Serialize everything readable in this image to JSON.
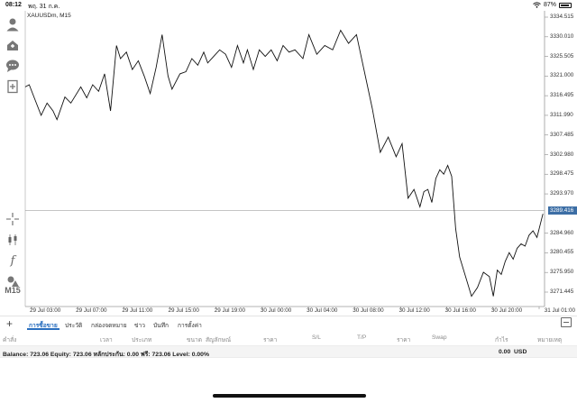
{
  "status_bar": {
    "time": "08:12",
    "date": "พฤ. 31 ก.ค.",
    "battery": "87%",
    "battery_level": 0.87
  },
  "toolbar": {
    "timeframe": "M15",
    "icons": [
      "account-icon",
      "trade-icon",
      "chat-icon",
      "new-order-icon",
      "crosshair-icon",
      "indicator-icon",
      "function-icon",
      "objects-icon"
    ]
  },
  "chart": {
    "symbol_label": "XAUUSDm, M15",
    "current_price": "3289.416",
    "line_color": "#111111",
    "current_price_color": "#3c6ea5"
  },
  "chart_data": {
    "type": "line",
    "title": "",
    "xlabel": "",
    "ylabel": "",
    "ylim": [
      3267.0,
      3336.0
    ],
    "y_ticks": [
      "3334.515",
      "3330.010",
      "3325.505",
      "3321.000",
      "3316.495",
      "3311.990",
      "3307.485",
      "3302.980",
      "3298.475",
      "3293.970",
      "3289.416",
      "3284.960",
      "3280.455",
      "3275.950",
      "3271.445"
    ],
    "x_ticks": [
      "29 Jul 03:00",
      "29 Jul 07:00",
      "29 Jul 11:00",
      "29 Jul 15:00",
      "29 Jul 19:00",
      "30 Jul 00:00",
      "30 Jul 04:00",
      "30 Jul 08:00",
      "30 Jul 12:00",
      "30 Jul 16:00",
      "30 Jul 20:00",
      "31 Jul 01:00"
    ],
    "x_index": [
      0,
      2,
      5,
      8,
      11,
      14,
      16,
      20,
      23,
      28,
      31,
      34,
      37,
      40,
      43,
      46,
      48,
      51,
      54,
      57,
      60,
      63,
      66,
      69,
      72,
      74,
      78,
      81,
      84,
      87,
      90,
      92,
      95,
      98,
      101,
      104,
      107,
      110,
      112,
      115,
      118,
      121,
      124,
      127,
      130,
      133,
      136,
      140,
      143,
      147,
      151,
      155,
      159,
      163,
      167,
      171,
      175,
      179,
      183,
      187,
      190,
      193,
      196,
      199,
      201,
      203,
      205,
      207,
      209,
      211,
      213,
      215,
      217,
      219,
      222,
      225,
      228,
      231,
      234,
      236,
      238,
      240,
      242,
      244,
      246,
      248,
      250,
      252,
      254,
      256,
      258,
      261
    ],
    "values": [
      3318.5,
      3319.0,
      3315.5,
      3312.0,
      3314.8,
      3313.0,
      3311.0,
      3316.2,
      3314.8,
      3318.5,
      3316.0,
      3319.0,
      3317.5,
      3321.5,
      3313.0,
      3328.0,
      3325.0,
      3326.5,
      3322.5,
      3324.5,
      3321.0,
      3317.0,
      3323.0,
      3330.5,
      3321.0,
      3318.0,
      3321.5,
      3322.0,
      3325.0,
      3323.5,
      3326.5,
      3324.0,
      3325.5,
      3327.0,
      3326.0,
      3323.0,
      3328.0,
      3324.0,
      3327.0,
      3322.5,
      3327.0,
      3325.5,
      3327.0,
      3324.5,
      3328.0,
      3326.5,
      3327.0,
      3325.0,
      3330.5,
      3326.0,
      3328.0,
      3327.0,
      3331.5,
      3328.5,
      3330.5,
      3322.0,
      3313.5,
      3303.5,
      3307.0,
      3302.5,
      3305.5,
      3293.0,
      3295.0,
      3291.0,
      3294.5,
      3295.0,
      3292.0,
      3297.5,
      3299.5,
      3298.5,
      3300.5,
      3298.0,
      3286.0,
      3279.5,
      3275.0,
      3270.5,
      3272.5,
      3276.0,
      3275.0,
      3270.5,
      3276.5,
      3275.5,
      3278.5,
      3280.5,
      3279.0,
      3281.5,
      3282.5,
      3282.0,
      3284.5,
      3285.5,
      3284.0,
      3289.4
    ],
    "grid": false,
    "legend": "none"
  },
  "tabs": {
    "items": [
      "การซื้อขาย",
      "ประวัติ",
      "กล่องจดหมาย",
      "ข่าว",
      "บันทึก",
      "การตั้งค่า"
    ],
    "active_index": 0
  },
  "table": {
    "columns": [
      "คำสั่ง",
      "เวลา",
      "ประเภท",
      "ขนาด",
      "สัญลักษณ์",
      "ราคา",
      "S/L",
      "T/P",
      "ราคา",
      "Swap",
      "กำไร",
      "หมายเหตุ"
    ]
  },
  "balance": {
    "text": "Balance: 723.06 Equity: 723.06 หลักประกัน: 0.00 ฟรี: 723.06 Level: 0.00%",
    "profit": "0.00",
    "currency": "USD"
  }
}
